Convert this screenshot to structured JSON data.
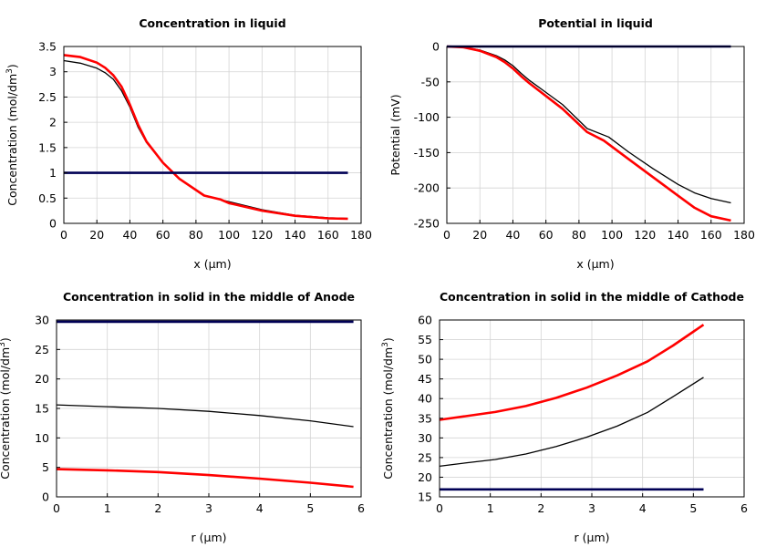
{
  "chart_data": [
    {
      "type": "line",
      "title": "Concentration in liquid",
      "xlabel": "x (µm)",
      "ylabel": "Concentration (mol/dm",
      "ylabel_sup": "3",
      "ylabel_end": ")",
      "xlim": [
        0,
        180
      ],
      "ylim": [
        0,
        3.5
      ],
      "xticks": [
        "0",
        "20",
        "40",
        "60",
        "80",
        "100",
        "120",
        "140",
        "160",
        "180"
      ],
      "yticks": [
        "0",
        "0.5",
        "1",
        "1.5",
        "2",
        "2.5",
        "3",
        "3.5"
      ],
      "grid": true,
      "series": [
        {
          "color": "#000000",
          "width": 1.3,
          "x": [
            0,
            10,
            20,
            25,
            30,
            35,
            40,
            45,
            50,
            60,
            70,
            85,
            100,
            120,
            140,
            160,
            172
          ],
          "y": [
            3.22,
            3.17,
            3.07,
            2.98,
            2.85,
            2.62,
            2.3,
            1.9,
            1.6,
            1.2,
            0.88,
            0.55,
            0.43,
            0.27,
            0.16,
            0.11,
            0.1
          ]
        },
        {
          "color": "#ff0000",
          "width": 2.6,
          "x": [
            0,
            10,
            20,
            25,
            30,
            35,
            40,
            45,
            50,
            60,
            70,
            85,
            95,
            100,
            120,
            140,
            160,
            172
          ],
          "y": [
            3.33,
            3.29,
            3.18,
            3.08,
            2.93,
            2.7,
            2.35,
            1.95,
            1.62,
            1.2,
            0.88,
            0.55,
            0.47,
            0.4,
            0.25,
            0.15,
            0.1,
            0.09
          ]
        },
        {
          "color": "#000055",
          "width": 2.6,
          "x": [
            0,
            172
          ],
          "y": [
            1.0,
            1.0
          ]
        }
      ]
    },
    {
      "type": "line",
      "title": "Potential in liquid",
      "xlabel": "x (µm)",
      "ylabel": "Potential (mV)",
      "ylabel_sup": "",
      "ylabel_end": "",
      "xlim": [
        0,
        180
      ],
      "ylim": [
        -250,
        0
      ],
      "xticks": [
        "0",
        "20",
        "40",
        "60",
        "80",
        "100",
        "120",
        "140",
        "160",
        "180"
      ],
      "yticks": [
        "-250",
        "-200",
        "-150",
        "-100",
        "-50",
        "0"
      ],
      "grid": true,
      "series": [
        {
          "color": "#000000",
          "width": 1.3,
          "x": [
            0,
            10,
            20,
            30,
            35,
            40,
            45,
            50,
            60,
            70,
            85,
            98,
            110,
            125,
            140,
            150,
            160,
            172
          ],
          "y": [
            0,
            -1,
            -5,
            -13,
            -19,
            -27,
            -38,
            -48,
            -65,
            -82,
            -116,
            -128,
            -149,
            -173,
            -195,
            -207,
            -215,
            -221
          ]
        },
        {
          "color": "#ff0000",
          "width": 2.6,
          "x": [
            0,
            10,
            20,
            30,
            35,
            40,
            45,
            50,
            60,
            70,
            85,
            95,
            110,
            125,
            140,
            150,
            160,
            172
          ],
          "y": [
            0,
            -1,
            -6,
            -15,
            -22,
            -31,
            -42,
            -52,
            -70,
            -88,
            -121,
            -133,
            -159,
            -185,
            -211,
            -228,
            -240,
            -246
          ]
        },
        {
          "color": "#000055",
          "width": 2.6,
          "x": [
            0,
            172
          ],
          "y": [
            0,
            0
          ]
        }
      ]
    },
    {
      "type": "line",
      "title": "Concentration in solid in the middle of Anode",
      "xlabel": "r (µm)",
      "ylabel": "Concentration (mol/dm",
      "ylabel_sup": "3",
      "ylabel_end": ")",
      "xlim": [
        0,
        6
      ],
      "ylim": [
        0,
        30
      ],
      "xticks": [
        "0",
        "1",
        "2",
        "3",
        "4",
        "5",
        "6"
      ],
      "yticks": [
        "0",
        "5",
        "10",
        "15",
        "20",
        "25",
        "30"
      ],
      "grid": true,
      "series": [
        {
          "color": "#000000",
          "width": 1.3,
          "x": [
            0,
            1,
            2,
            3,
            4,
            5,
            5.85
          ],
          "y": [
            15.6,
            15.3,
            15.0,
            14.5,
            13.8,
            12.9,
            11.9
          ]
        },
        {
          "color": "#ff0000",
          "width": 2.6,
          "x": [
            0,
            1,
            2,
            3,
            4,
            5,
            5.85
          ],
          "y": [
            4.7,
            4.5,
            4.2,
            3.7,
            3.1,
            2.4,
            1.7
          ]
        },
        {
          "color": "#000055",
          "width": 2.6,
          "x": [
            0,
            5.85
          ],
          "y": [
            29.7,
            29.7
          ]
        }
      ]
    },
    {
      "type": "line",
      "title": "Concentration in solid in the middle of Cathode",
      "xlabel": "r (µm)",
      "ylabel": "Concentration (mol/dm",
      "ylabel_sup": "3",
      "ylabel_end": ")",
      "xlim": [
        0,
        6
      ],
      "ylim": [
        15,
        60
      ],
      "xticks": [
        "0",
        "1",
        "2",
        "3",
        "4",
        "5",
        "6"
      ],
      "yticks": [
        "15",
        "20",
        "25",
        "30",
        "35",
        "40",
        "45",
        "50",
        "55",
        "60"
      ],
      "grid": true,
      "series": [
        {
          "color": "#000000",
          "width": 1.3,
          "x": [
            0,
            0.5,
            1.1,
            1.7,
            2.3,
            2.9,
            3.5,
            4.1,
            4.6,
            5.2
          ],
          "y": [
            22.8,
            23.6,
            24.5,
            25.9,
            27.8,
            30.2,
            33.0,
            36.5,
            40.5,
            45.4
          ]
        },
        {
          "color": "#ff0000",
          "width": 2.6,
          "x": [
            0,
            0.5,
            1.1,
            1.7,
            2.3,
            2.9,
            3.5,
            4.1,
            4.6,
            5.2
          ],
          "y": [
            34.6,
            35.5,
            36.6,
            38.1,
            40.2,
            42.8,
            45.9,
            49.5,
            53.5,
            58.8
          ]
        },
        {
          "color": "#000055",
          "width": 2.6,
          "x": [
            0,
            5.2
          ],
          "y": [
            16.9,
            16.9
          ]
        }
      ]
    }
  ]
}
